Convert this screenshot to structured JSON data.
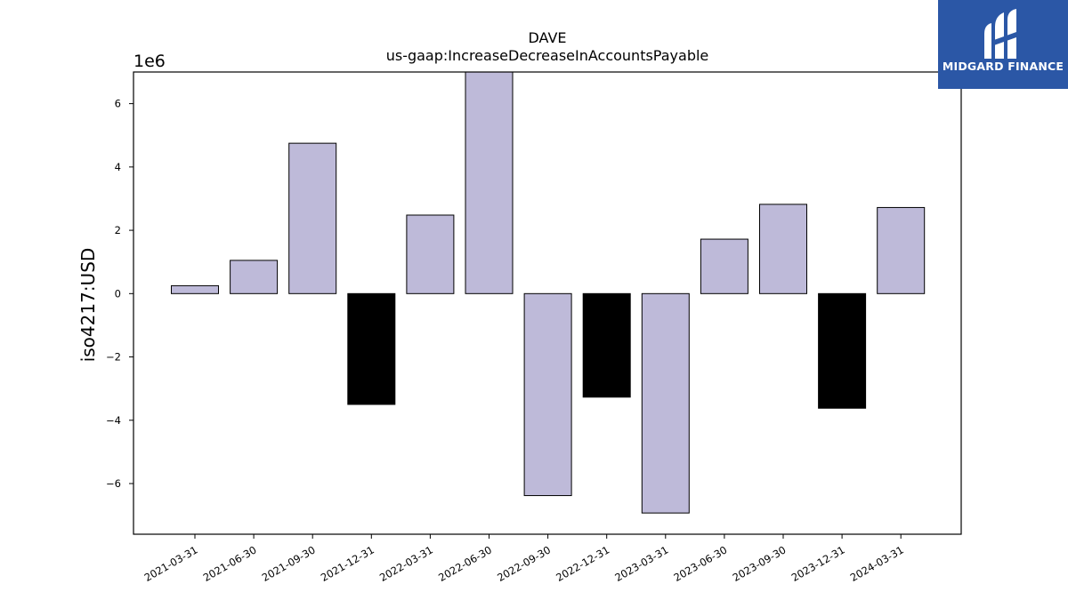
{
  "chart_data": {
    "type": "bar",
    "title": "DAVE",
    "subtitle": "us-gaap:IncreaseDecreaseInAccountsPayable",
    "xlabel": "",
    "ylabel": "iso4217:USD",
    "y_multiplier_label": "1e6",
    "ylim": [
      -7.6,
      7.0
    ],
    "yticks": [
      -6,
      -4,
      -2,
      0,
      2,
      4,
      6
    ],
    "ytick_labels": [
      "−6",
      "−4",
      "−2",
      "0",
      "2",
      "4",
      "6"
    ],
    "categories": [
      "2021-03-31",
      "2021-06-30",
      "2021-09-30",
      "2021-12-31",
      "2022-03-31",
      "2022-06-30",
      "2022-09-30",
      "2022-12-31",
      "2023-03-31",
      "2023-06-30",
      "2023-09-30",
      "2023-12-31",
      "2024-03-31"
    ],
    "values": [
      0.25,
      1.05,
      4.75,
      -3.5,
      2.48,
      7.0,
      -6.38,
      -3.27,
      -6.93,
      1.72,
      2.82,
      -3.62,
      2.72
    ],
    "bar_colors": [
      "#bebad9",
      "#bebad9",
      "#bebad9",
      "#000000",
      "#bebad9",
      "#bebad9",
      "#bebad9",
      "#000000",
      "#bebad9",
      "#bebad9",
      "#bebad9",
      "#000000",
      "#bebad9"
    ],
    "grid": false,
    "legend": "none"
  },
  "logo": {
    "text": "MIDGARD FINANCE",
    "icon": "midgard-logo-icon",
    "background": "#2b57a6"
  }
}
